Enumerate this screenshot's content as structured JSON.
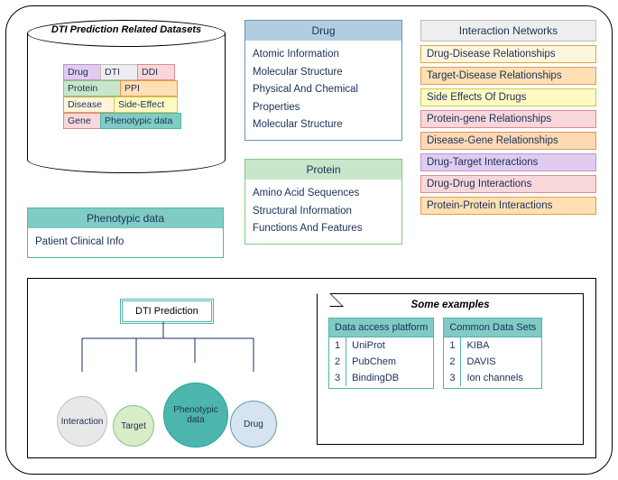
{
  "colors": {
    "blue_hdr": "#b3cde0",
    "blue_brd": "#6497b1",
    "green_hdr": "#c8e6c9",
    "green_brd": "#81c784",
    "teal_hdr": "#80cbc4",
    "teal_brd": "#4db6ac",
    "gray_hdr": "#eeeeee",
    "gray_brd": "#bdbdbd",
    "cream": "#fff5dc",
    "cream_brd": "#d4a84b",
    "orange": "#ffe0b2",
    "orange_brd": "#e6994d",
    "yellow": "#fff9c4",
    "yellow_brd": "#d4c84b",
    "pink": "#f8d7da",
    "pink_brd": "#e08b8b",
    "lav": "#e1ccf0",
    "lav_brd": "#b299cc",
    "peach": "#ffd9b3",
    "peach_brd": "#d99966",
    "pale_green": "#d8ecc8",
    "pale_gray": "#e8e8e8",
    "pale_blue": "#d6e4f0"
  },
  "cylinder": {
    "title": "DTI Prediction Related Datasets",
    "cells": [
      {
        "label": "Drug",
        "bg": "#e1ccf0",
        "bd": "#b299cc"
      },
      {
        "label": "DTI",
        "bg": "#eeeeee",
        "bd": "#bdbdbd"
      },
      {
        "label": "DDI",
        "bg": "#f8d7da",
        "bd": "#e08b8b"
      },
      {
        "label": "Protein",
        "bg": "#c8e6c9",
        "bd": "#81c784"
      },
      {
        "label": "PPI",
        "bg": "#ffe0b2",
        "bd": "#e6994d"
      },
      {
        "label": "Disease",
        "bg": "#fff5dc",
        "bd": "#d4a84b"
      },
      {
        "label": "Side-Effect",
        "bg": "#fff9c4",
        "bd": "#d4c84b"
      },
      {
        "label": "Gene",
        "bg": "#f8d7da",
        "bd": "#e08b8b"
      },
      {
        "label": "Phenotypic data",
        "bg": "#80cbc4",
        "bd": "#4db6ac"
      }
    ]
  },
  "drug": {
    "title": "Drug",
    "items": [
      "Atomic Information",
      "Molecular Structure",
      "Physical And Chemical Properties",
      "Molecular Structure"
    ]
  },
  "protein": {
    "title": "Protein",
    "items": [
      "Amino Acid Sequences",
      "Structural Information",
      "Functions And Features"
    ]
  },
  "networks": {
    "title": "Interaction Networks",
    "rows": [
      {
        "label": "Drug-Disease Relationships",
        "bg": "#fff5dc",
        "bd": "#d4a84b"
      },
      {
        "label": "Target-Disease Relationships",
        "bg": "#ffe0b2",
        "bd": "#e6994d"
      },
      {
        "label": "Side Effects Of Drugs",
        "bg": "#fff9c4",
        "bd": "#d4c84b"
      },
      {
        "label": "Protein-gene Relationships",
        "bg": "#f8d7da",
        "bd": "#e08b8b"
      },
      {
        "label": "Disease-Gene Relationships",
        "bg": "#ffd9b3",
        "bd": "#d99966"
      },
      {
        "label": "Drug-Target Interactions",
        "bg": "#e1ccf0",
        "bd": "#b299cc"
      },
      {
        "label": "Drug-Drug Interactions",
        "bg": "#f8d7da",
        "bd": "#e08b8b"
      },
      {
        "label": "Protein-Protein Interactions",
        "bg": "#ffe0b2",
        "bd": "#e6994d"
      }
    ]
  },
  "pheno": {
    "title": "Phenotypic data",
    "item": "Patient Clinical Info"
  },
  "tree": {
    "root": "DTI Prediction",
    "leaves": [
      {
        "label": "Interaction",
        "bg": "#e8e8e8",
        "bd": "#bdbdbd",
        "r": 28
      },
      {
        "label": "Target",
        "bg": "#d8ecc8",
        "bd": "#81c784",
        "r": 23
      },
      {
        "label": "Phenotypic data",
        "bg": "#4db6ac",
        "bd": "#26a69a",
        "r": 36
      },
      {
        "label": "Drug",
        "bg": "#d6e4f0",
        "bd": "#6497b1",
        "r": 26
      }
    ]
  },
  "examples": {
    "title": "Some examples",
    "left": {
      "header": "Data access platform",
      "rows": [
        "UniProt",
        "PubChem",
        "BindingDB"
      ]
    },
    "right": {
      "header": "Common Data Sets",
      "rows": [
        "KIBA",
        "DAVIS",
        "Ion channels"
      ]
    }
  }
}
